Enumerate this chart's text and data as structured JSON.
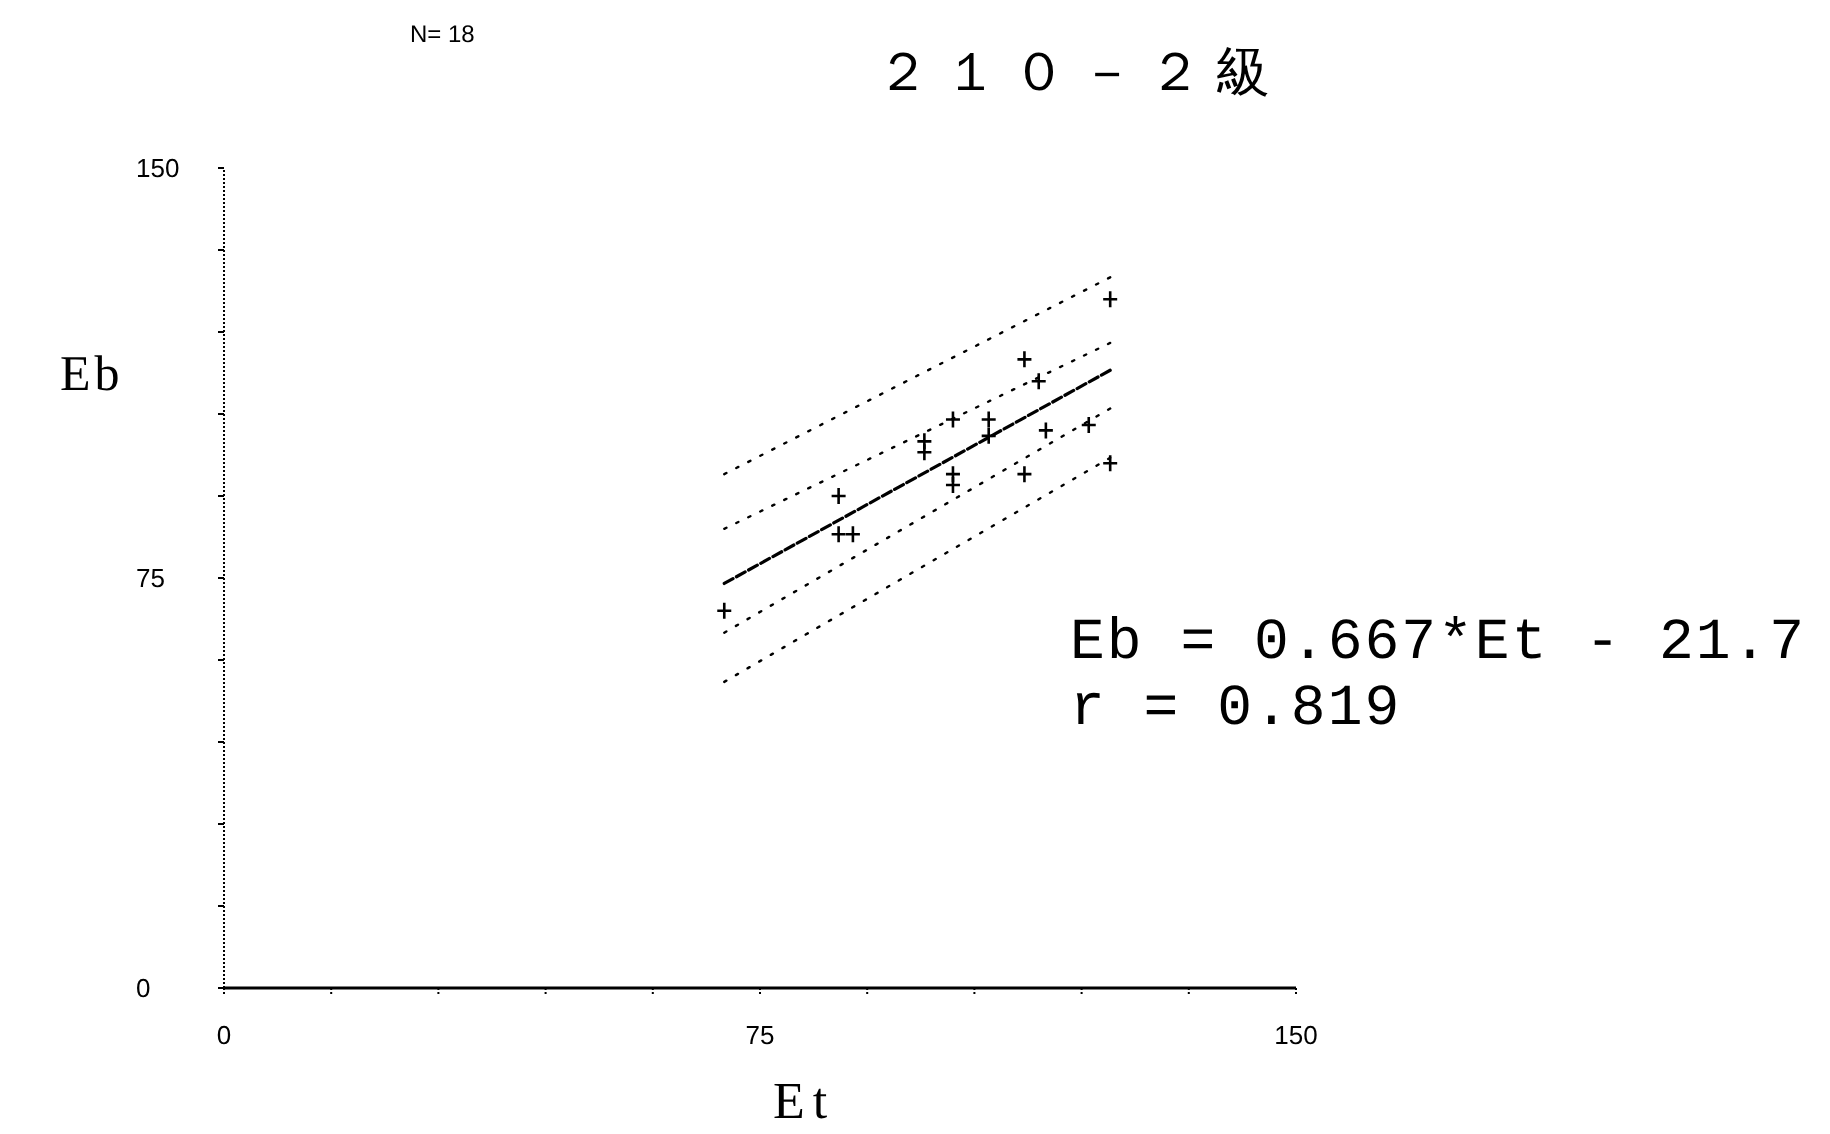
{
  "chart_data": {
    "type": "scatter",
    "title": "２１０－２級",
    "xlabel": "Et",
    "ylabel": "Eb",
    "annotations": [
      "N= 18",
      "Eb = 0.667*Et - 21.7",
      "r = 0.819"
    ],
    "xlim": [
      0,
      150
    ],
    "ylim": [
      0,
      150
    ],
    "xticks": [
      0,
      {
        "value": 15,
        "label": null
      },
      {
        "value": 30,
        "label": null
      },
      {
        "value": 45,
        "label": null
      },
      {
        "value": 60,
        "label": null
      },
      75,
      {
        "value": 90,
        "label": null
      },
      {
        "value": 105,
        "label": null
      },
      {
        "value": 120,
        "label": null
      },
      {
        "value": 135,
        "label": null
      },
      150
    ],
    "yticks": [
      0,
      {
        "value": 15,
        "label": null
      },
      {
        "value": 30,
        "label": null
      },
      {
        "value": 45,
        "label": null
      },
      {
        "value": 60,
        "label": null
      },
      75,
      {
        "value": 90,
        "label": null
      },
      {
        "value": 105,
        "label": null
      },
      {
        "value": 120,
        "label": null
      },
      {
        "value": 135,
        "label": null
      },
      150
    ],
    "marker": "cross",
    "series": [
      {
        "type": "scatter",
        "color": "#000000",
        "x": [
          124,
          112,
          114,
          102,
          107,
          115,
          121,
          98,
          102,
          112,
          124,
          86,
          86,
          88,
          70,
          98,
          107,
          102
        ],
        "values": [
          126,
          115,
          111,
          104,
          104,
          102,
          103,
          100,
          94,
          94,
          96,
          90,
          83,
          83,
          69,
          98,
          101,
          92
        ]
      },
      {
        "type": "line",
        "line_style": "dashed",
        "marker": "none",
        "color": "#000000",
        "x": [
          70,
          124
        ],
        "values": [
          74,
          113
        ]
      },
      {
        "type": "line",
        "line_style": "dotted",
        "marker": "none",
        "color": "#000000",
        "x": [
          70,
          124
        ],
        "values": [
          94,
          130
        ]
      },
      {
        "type": "line",
        "line_style": "dotted",
        "marker": "none",
        "color": "#000000",
        "x": [
          70,
          124
        ],
        "values": [
          84,
          118
        ]
      },
      {
        "type": "line",
        "line_style": "dotted",
        "marker": "none",
        "color": "#000000",
        "x": [
          70,
          124
        ],
        "values": [
          65,
          106
        ]
      },
      {
        "type": "line",
        "line_style": "dotted",
        "marker": "none",
        "color": "#000000",
        "x": [
          70,
          124
        ],
        "values": [
          56,
          97
        ]
      }
    ]
  }
}
